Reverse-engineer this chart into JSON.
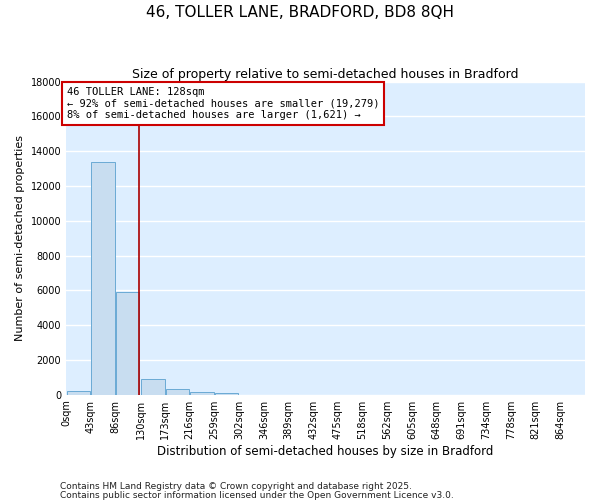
{
  "title": "46, TOLLER LANE, BRADFORD, BD8 8QH",
  "subtitle": "Size of property relative to semi-detached houses in Bradford",
  "xlabel": "Distribution of semi-detached houses by size in Bradford",
  "ylabel": "Number of semi-detached properties",
  "bin_edges": [
    0,
    43,
    86,
    130,
    173,
    216,
    259,
    302,
    346,
    389,
    432,
    475,
    518,
    562,
    605,
    648,
    691,
    734,
    778,
    821,
    864
  ],
  "bar_heights": [
    200,
    13400,
    5900,
    900,
    300,
    150,
    100,
    0,
    0,
    0,
    0,
    0,
    0,
    0,
    0,
    0,
    0,
    0,
    0,
    0
  ],
  "bar_color": "#c8ddf0",
  "bar_edge_color": "#6aaad4",
  "background_color": "#ddeeff",
  "grid_color": "#ffffff",
  "ylim": [
    0,
    18000
  ],
  "yticks": [
    0,
    2000,
    4000,
    6000,
    8000,
    10000,
    12000,
    14000,
    16000,
    18000
  ],
  "property_size": 128,
  "red_line_color": "#aa0000",
  "annotation_line1": "46 TOLLER LANE: 128sqm",
  "annotation_line2": "← 92% of semi-detached houses are smaller (19,279)",
  "annotation_line3": "8% of semi-detached houses are larger (1,621) →",
  "annotation_box_color": "#cc0000",
  "footnote1": "Contains HM Land Registry data © Crown copyright and database right 2025.",
  "footnote2": "Contains public sector information licensed under the Open Government Licence v3.0.",
  "title_fontsize": 11,
  "subtitle_fontsize": 9,
  "tick_fontsize": 7,
  "ylabel_fontsize": 8,
  "xlabel_fontsize": 8.5,
  "annot_fontsize": 7.5
}
